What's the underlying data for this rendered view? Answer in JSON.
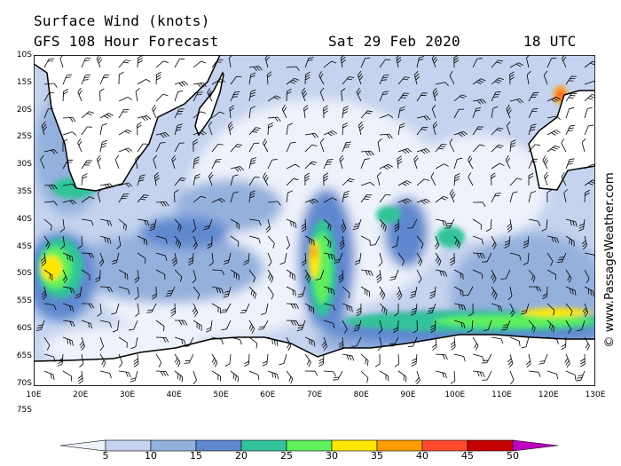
{
  "header": {
    "title": "Surface Wind (knots)",
    "forecast": "GFS 108 Hour Forecast",
    "date": "Sat 29 Feb 2020",
    "time": "18 UTC"
  },
  "credit": "© www.PassageWeather.com",
  "lat_labels": [
    "10S",
    "15S",
    "20S",
    "25S",
    "30S",
    "35S",
    "40S",
    "45S",
    "50S",
    "55S",
    "60S",
    "65S",
    "70S",
    "75S"
  ],
  "lon_labels": [
    "10E",
    "20E",
    "30E",
    "40E",
    "50E",
    "60E",
    "70E",
    "80E",
    "90E",
    "100E",
    "110E",
    "120E",
    "130E"
  ],
  "scale": {
    "labels": [
      "5",
      "10",
      "15",
      "20",
      "25",
      "30",
      "35",
      "40",
      "45",
      "50"
    ],
    "colors": [
      "#eef2fb",
      "#c5d3ee",
      "#94b1de",
      "#5f88cf",
      "#33c39a",
      "#5ff05a",
      "#ffe600",
      "#ff9d00",
      "#ff4a2e",
      "#c60000",
      "#c000c0"
    ]
  }
}
